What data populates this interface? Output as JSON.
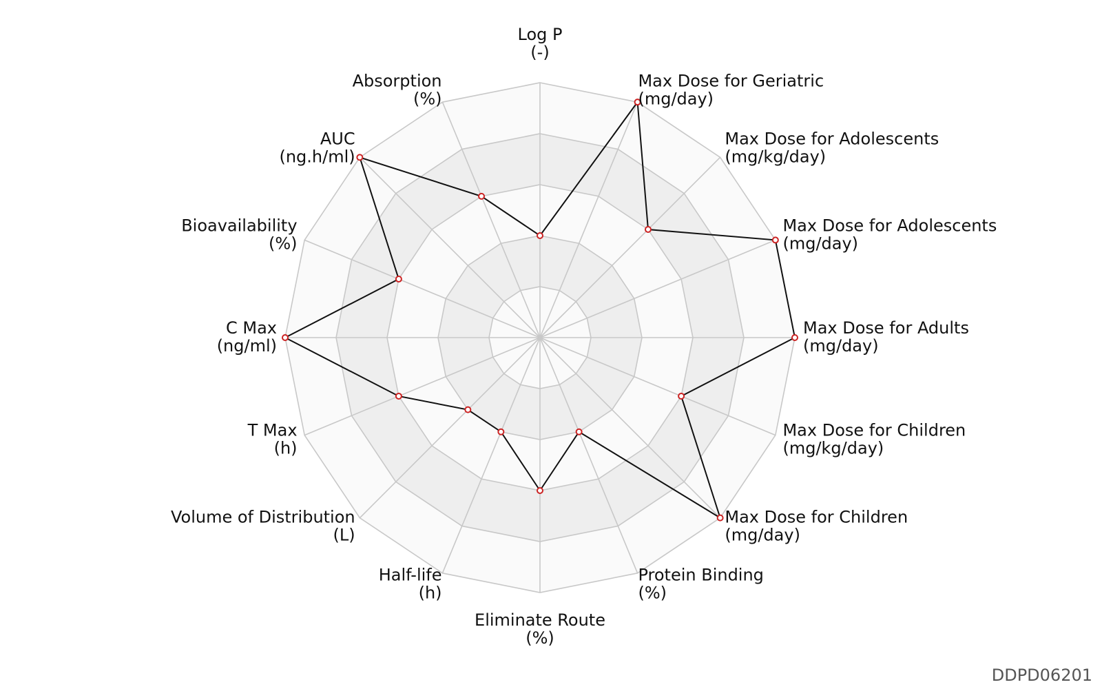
{
  "chart_data": {
    "type": "radar",
    "max_value": 1.0,
    "ring_count": 5,
    "axes": [
      {
        "label": "Log P",
        "unit": "(-)",
        "value": 0.4
      },
      {
        "label": "Max Dose for Geriatric",
        "unit": "(mg/day)",
        "value": 1.0
      },
      {
        "label": "Max Dose for Adolescents",
        "unit": "(mg/kg/day)",
        "value": 0.6
      },
      {
        "label": "Max Dose for Adolescents",
        "unit": "(mg/day)",
        "value": 1.0
      },
      {
        "label": "Max Dose for Adults",
        "unit": "(mg/day)",
        "value": 1.0
      },
      {
        "label": "Max Dose for Children",
        "unit": "(mg/kg/day)",
        "value": 0.6
      },
      {
        "label": "Max Dose for Children",
        "unit": "(mg/day)",
        "value": 1.0
      },
      {
        "label": "Protein Binding",
        "unit": "(%)",
        "value": 0.4
      },
      {
        "label": "Eliminate Route",
        "unit": "(%)",
        "value": 0.6
      },
      {
        "label": "Half-life",
        "unit": "(h)",
        "value": 0.4
      },
      {
        "label": "Volume of Distribution",
        "unit": "(L)",
        "value": 0.4
      },
      {
        "label": "T Max",
        "unit": "(h)",
        "value": 0.6
      },
      {
        "label": "C Max",
        "unit": "(ng/ml)",
        "value": 1.0
      },
      {
        "label": "Bioavailability",
        "unit": "(%)",
        "value": 0.6
      },
      {
        "label": "AUC",
        "unit": "(ng.h/ml)",
        "value": 1.0
      },
      {
        "label": "Absorption",
        "unit": "(%)",
        "value": 0.6
      }
    ],
    "colors": {
      "line": "#111111",
      "marker_edge": "#cc2222",
      "marker_fill": "#ffffff",
      "grid": "#c8c8c8",
      "band_shaded": "#eeeeee",
      "band_light": "#fafafa"
    }
  },
  "footer": {
    "id_label": "DDPD06201"
  }
}
